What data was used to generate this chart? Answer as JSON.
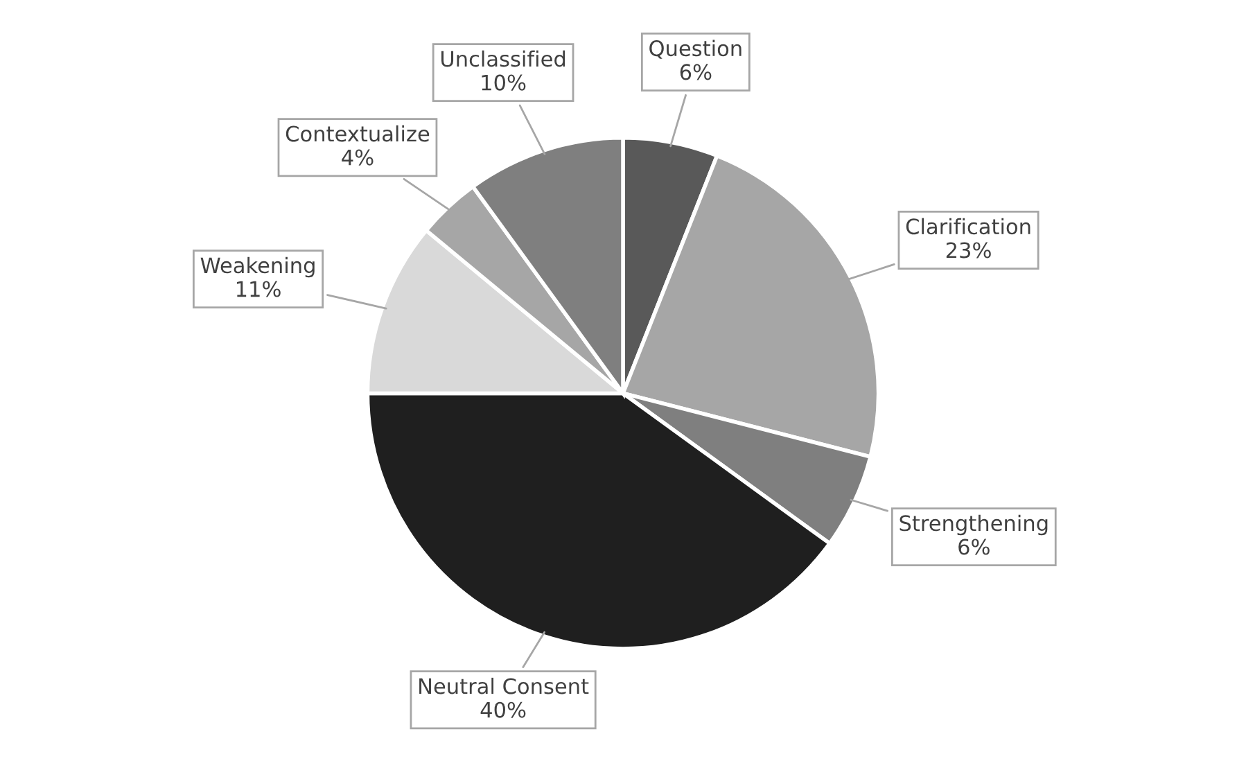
{
  "chart_data": {
    "type": "pie",
    "categories": [
      "Question",
      "Clarification",
      "Strengthening",
      "Neutral Consent",
      "Weakening",
      "Contextualize",
      "Unclassified"
    ],
    "values": [
      6,
      23,
      6,
      40,
      11,
      4,
      10
    ],
    "colors": [
      "#595959",
      "#a6a6a6",
      "#7f7f7f",
      "#1f1f1f",
      "#d9d9d9",
      "#a6a6a6",
      "#7f7f7f"
    ],
    "value_labels": [
      "6%",
      "23%",
      "6%",
      "40%",
      "11%",
      "4%",
      "10%"
    ],
    "legend": false
  }
}
